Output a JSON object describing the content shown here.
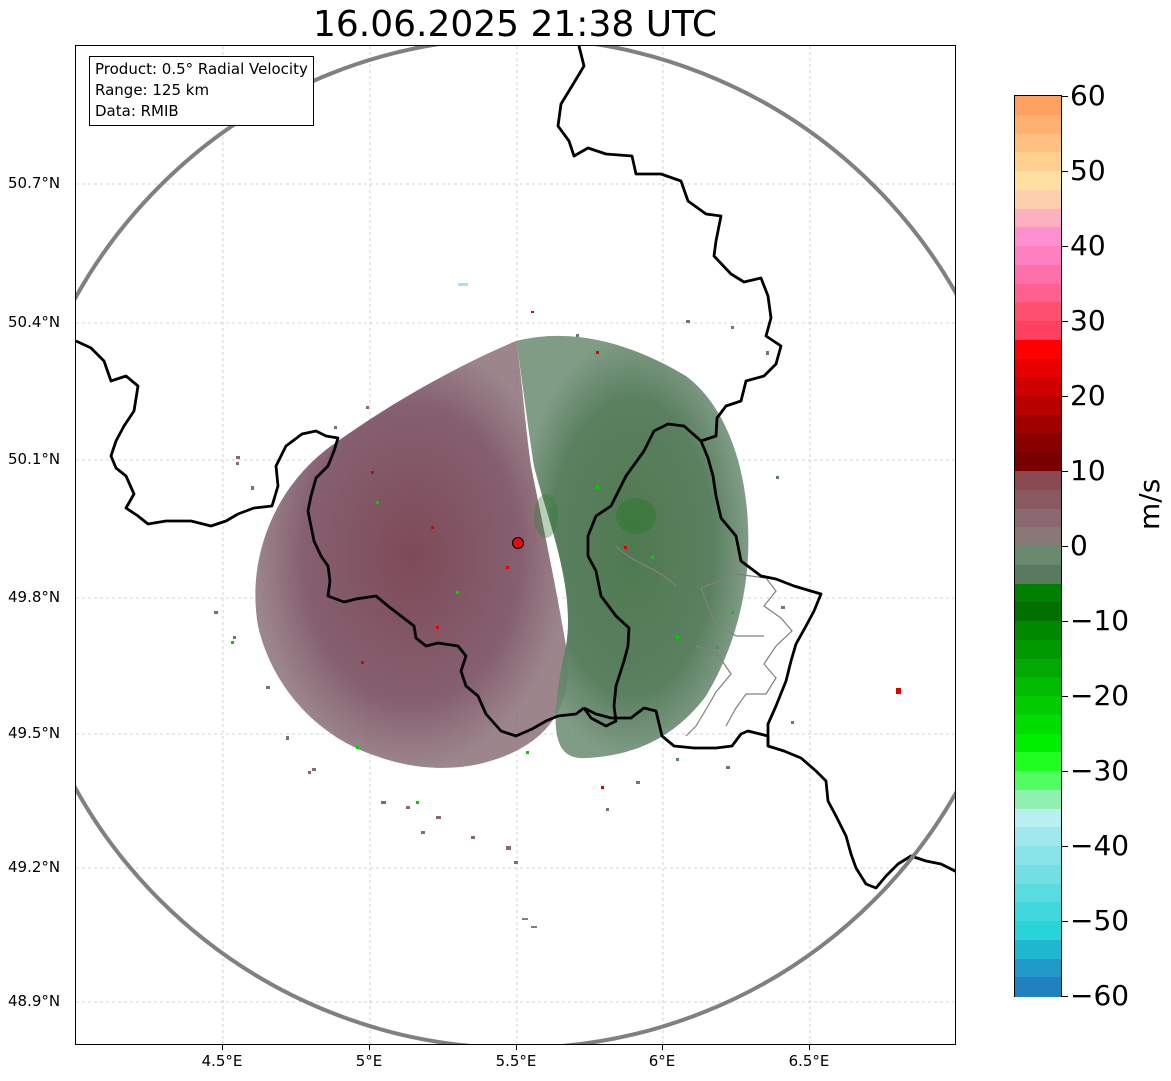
{
  "title": "16.06.2025 21:38 UTC",
  "info_box": {
    "product": "Product: 0.5° Radial Velocity",
    "range": "Range: 125 km",
    "data": "Data: RMIB"
  },
  "axes": {
    "x_ticks": [
      "4.5°E",
      "5°E",
      "5.5°E",
      "6°E",
      "6.5°E"
    ],
    "y_ticks": [
      "50.7°N",
      "50.4°N",
      "50.1°N",
      "49.8°N",
      "49.5°N",
      "49.2°N",
      "48.9°N"
    ],
    "grid": true
  },
  "colorbar": {
    "label": "m/s",
    "ticks": [
      "60",
      "50",
      "40",
      "30",
      "20",
      "10",
      "0",
      "−10",
      "−20",
      "−30",
      "−40",
      "−50",
      "−60"
    ],
    "range": [
      -60,
      60
    ],
    "colors_top_to_bottom": [
      "#ffa060",
      "#ffb070",
      "#ffc080",
      "#ffd090",
      "#ffe0a0",
      "#ffd0b0",
      "#ffb0c0",
      "#ff90d0",
      "#ff80c0",
      "#ff70a8",
      "#ff6090",
      "#ff5070",
      "#ff4060",
      "#ff0000",
      "#e80000",
      "#d00000",
      "#b80000",
      "#a00000",
      "#880000",
      "#780000",
      "#8a4850",
      "#8a5860",
      "#8a6870",
      "#8a7878",
      "#6a8a70",
      "#5a7a60",
      "#008000",
      "#007000",
      "#008800",
      "#009900",
      "#00aa00",
      "#00bb00",
      "#00cc00",
      "#00dd00",
      "#00ee00",
      "#20ff20",
      "#50ff60",
      "#90f0b0",
      "#b8f0f0",
      "#a0e8ec",
      "#88e4e8",
      "#70e0e4",
      "#58dce0",
      "#40d8dc",
      "#28d4d8",
      "#20b8d0",
      "#2098c8",
      "#2080c0"
    ]
  },
  "radar_site": {
    "name": "radar-site",
    "color": "#e01010"
  },
  "colors": {
    "range_ring": "#808080",
    "border": "#000000",
    "province": "#808080",
    "grid": "#c8c8c8"
  }
}
